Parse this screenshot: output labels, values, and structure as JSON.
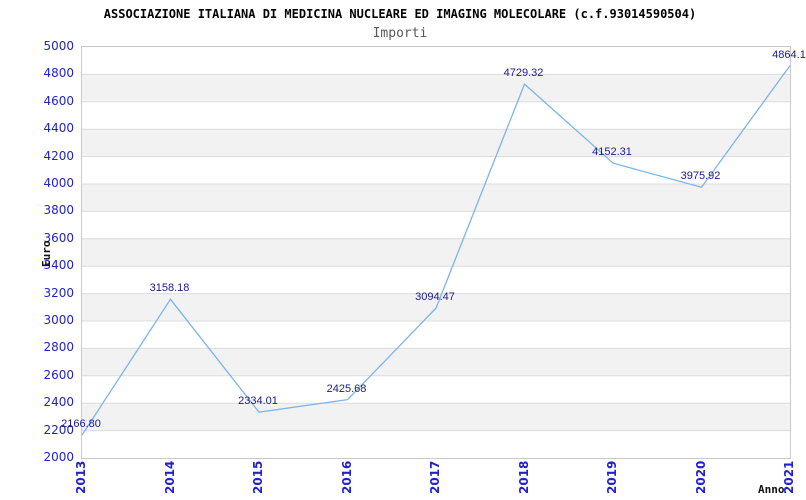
{
  "header": {
    "title": "ASSOCIAZIONE ITALIANA DI MEDICINA NUCLEARE ED IMAGING MOLECOLARE (c.f.93014590504)",
    "subtitle": "Importi"
  },
  "chart_data": {
    "type": "line",
    "title": "Importi",
    "categories": [
      "2013",
      "2014",
      "2015",
      "2016",
      "2017",
      "2018",
      "2019",
      "2020",
      "2021"
    ],
    "values": [
      2166.8,
      3158.18,
      2334.01,
      2425.68,
      3094.47,
      4729.32,
      4152.31,
      3975.92,
      4864.1
    ],
    "point_labels": [
      "2166.80",
      "3158.18",
      "2334.01",
      "2425.68",
      "3094.47",
      "4729.32",
      "4152.31",
      "3975.92",
      "4864.1"
    ],
    "xlabel": "Anno",
    "ylabel": "Euro",
    "ylim": [
      2000,
      5000
    ],
    "ytick_step": 200,
    "ytick_labels": [
      "5000",
      "4800",
      "4600",
      "4400",
      "4200",
      "4000",
      "3800",
      "3600",
      "3400",
      "3200",
      "3000",
      "2800",
      "2600",
      "2400",
      "2200",
      "2000"
    ],
    "grid": "horizontal",
    "legend": "none",
    "colors": {
      "line": "#7cb5ec",
      "tick_label": "#2222cc",
      "point_label": "#1a1a8c",
      "band_alt": "#f2f2f2",
      "band_main": "#ffffff",
      "gridline": "#dcdcdc",
      "plot_border": "#c9c9c9",
      "subtitle_text": "#595959",
      "title_text": "#000000"
    }
  }
}
